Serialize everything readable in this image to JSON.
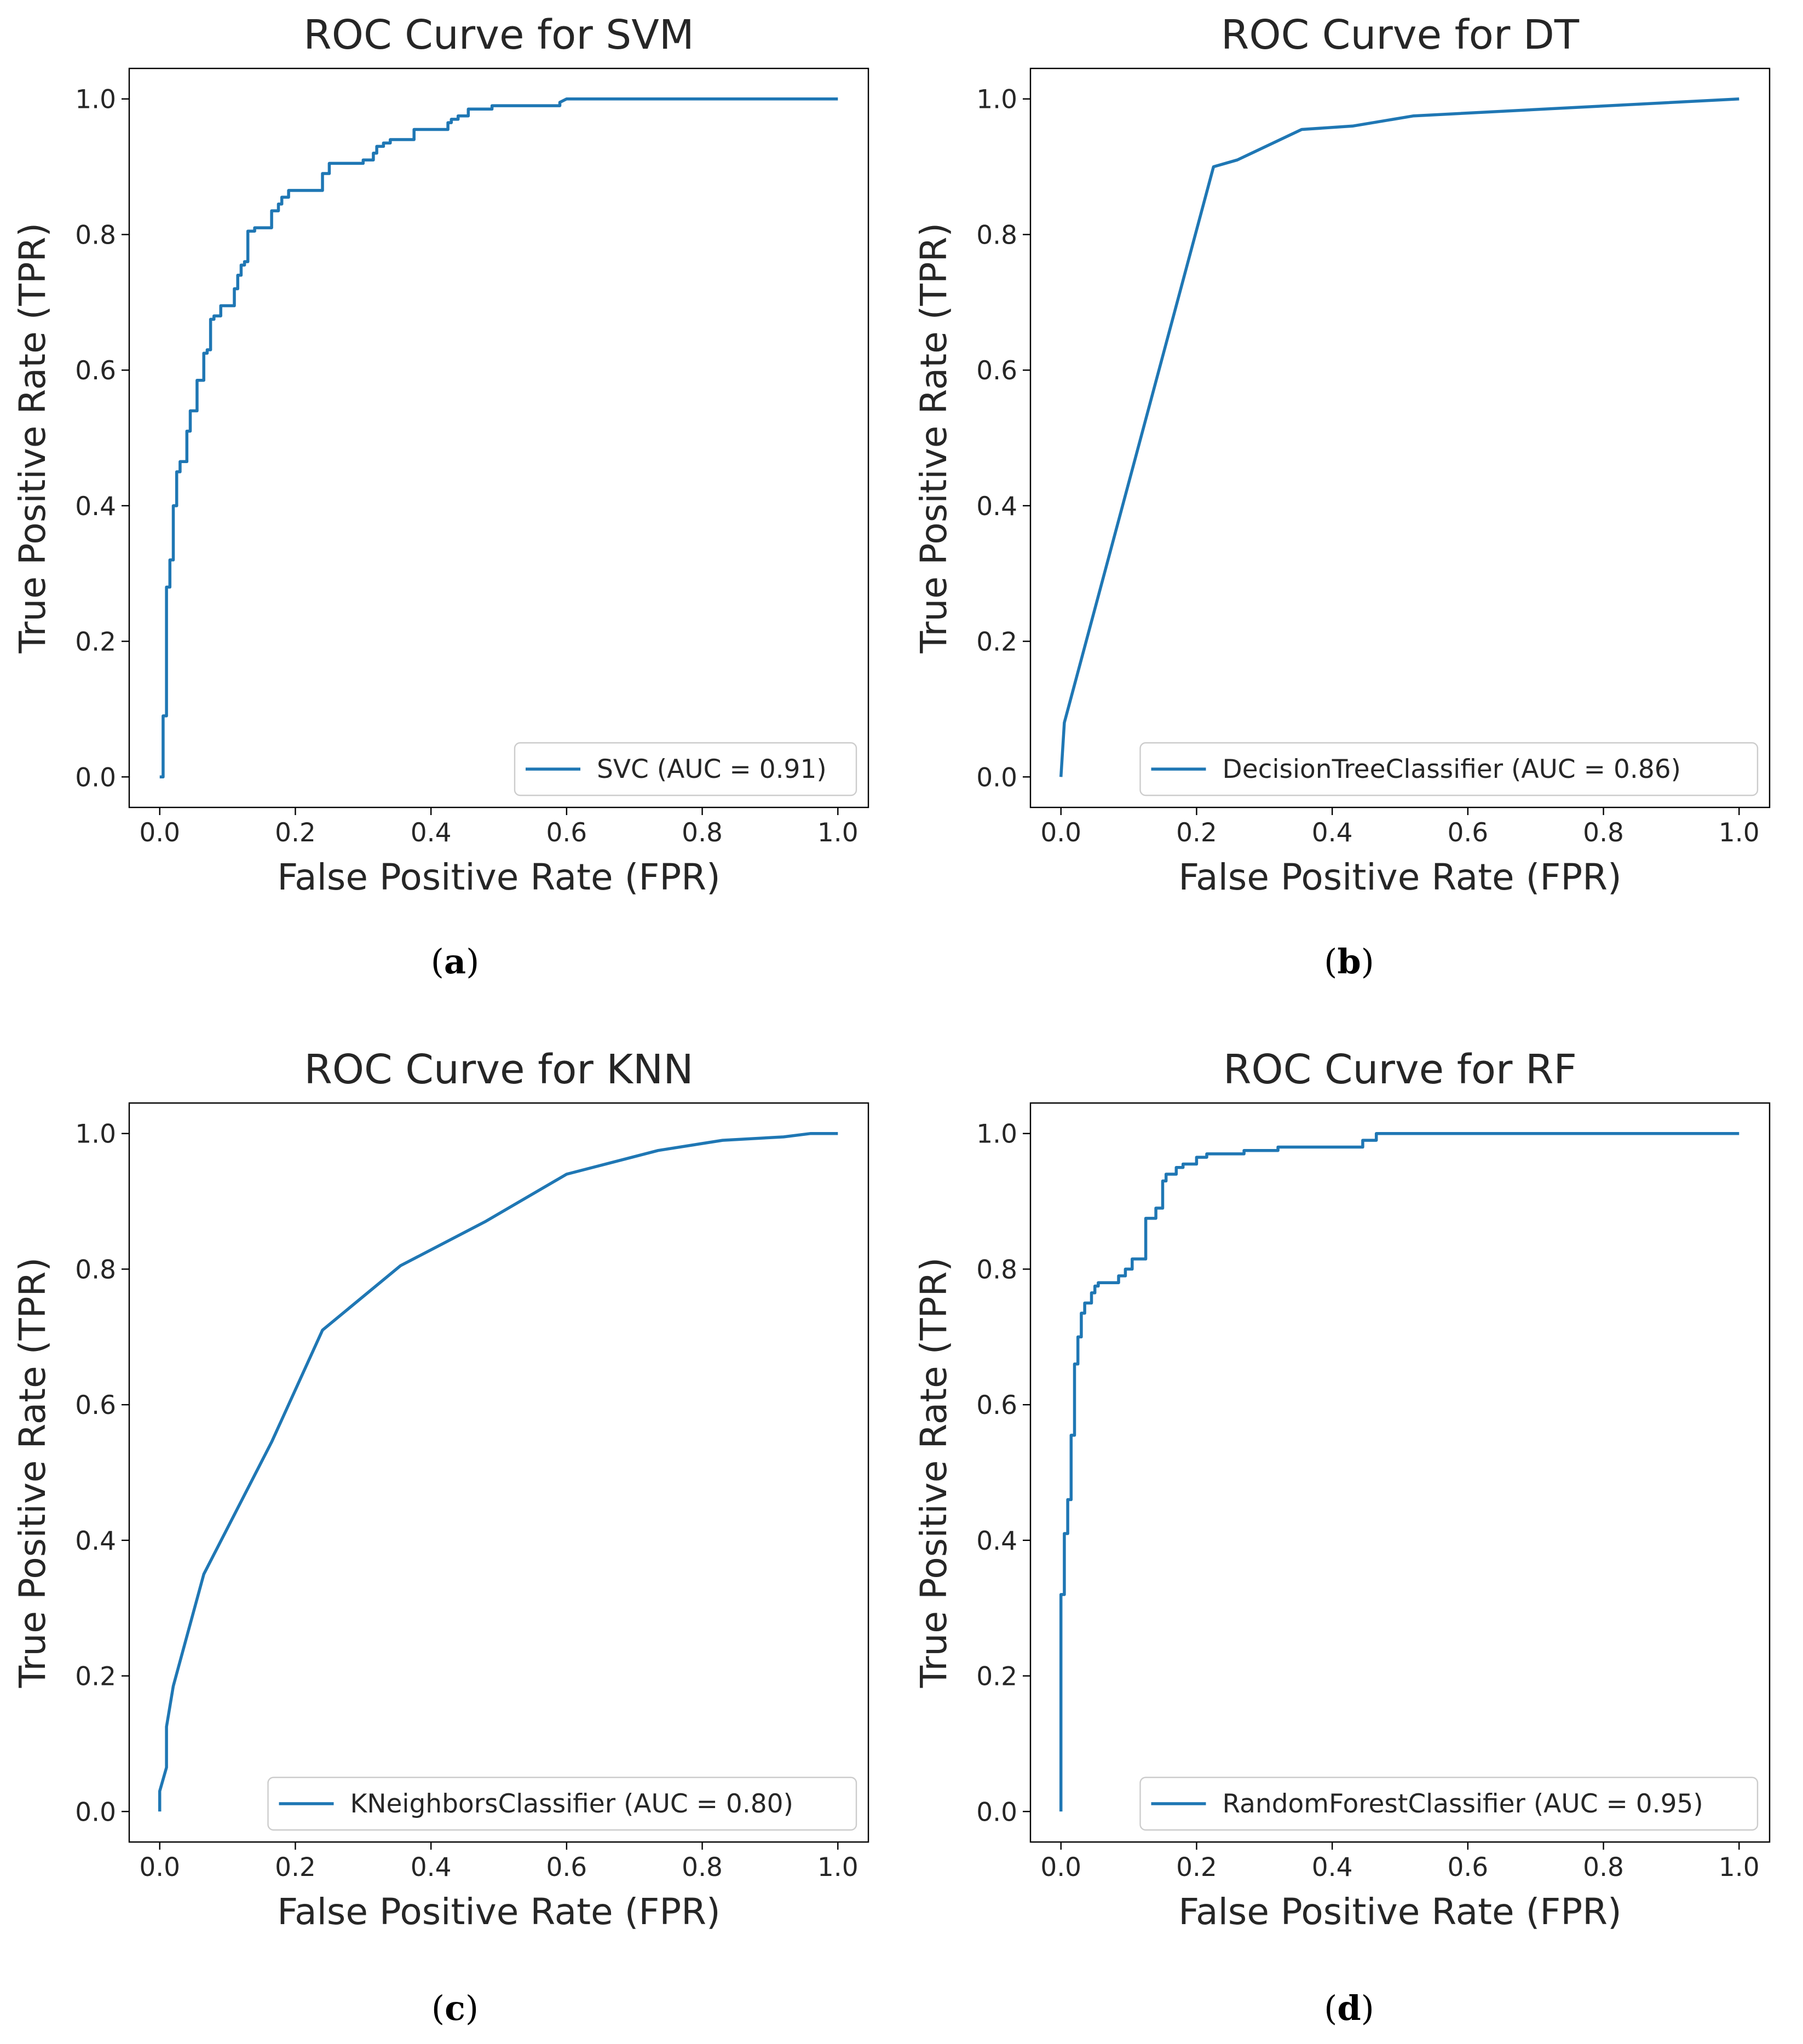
{
  "chart_data": [
    {
      "type": "line",
      "panel": "a",
      "title": "ROC Curve for SVM",
      "xlabel": "False Positive Rate (FPR)",
      "ylabel": "True Positive Rate (TPR)",
      "xlim": [
        0,
        1
      ],
      "ylim": [
        0,
        1
      ],
      "xticks": [
        "0.0",
        "0.2",
        "0.4",
        "0.6",
        "0.8",
        "1.0"
      ],
      "yticks": [
        "0.0",
        "0.2",
        "0.4",
        "0.6",
        "0.8",
        "1.0"
      ],
      "legend": "lower-right",
      "series": [
        {
          "name": "SVC (AUC = 0.91)",
          "color": "#1f77b4",
          "x": [
            0,
            0.005,
            0.005,
            0.01,
            0.01,
            0.015,
            0.015,
            0.02,
            0.02,
            0.025,
            0.025,
            0.03,
            0.03,
            0.04,
            0.04,
            0.045,
            0.045,
            0.05,
            0.05,
            0.055,
            0.055,
            0.065,
            0.065,
            0.07,
            0.07,
            0.075,
            0.075,
            0.08,
            0.08,
            0.09,
            0.09,
            0.11,
            0.11,
            0.115,
            0.115,
            0.12,
            0.12,
            0.125,
            0.125,
            0.13,
            0.13,
            0.14,
            0.14,
            0.165,
            0.165,
            0.175,
            0.175,
            0.18,
            0.18,
            0.19,
            0.19,
            0.2,
            0.2,
            0.21,
            0.21,
            0.24,
            0.24,
            0.25,
            0.25,
            0.3,
            0.3,
            0.315,
            0.315,
            0.32,
            0.32,
            0.33,
            0.33,
            0.34,
            0.34,
            0.375,
            0.375,
            0.425,
            0.425,
            0.43,
            0.43,
            0.44,
            0.44,
            0.455,
            0.455,
            0.49,
            0.49,
            0.59,
            0.59,
            0.6,
            1.0
          ],
          "y": [
            0,
            0,
            0.09,
            0.09,
            0.28,
            0.28,
            0.32,
            0.32,
            0.4,
            0.4,
            0.45,
            0.45,
            0.465,
            0.465,
            0.51,
            0.51,
            0.54,
            0.54,
            0.54,
            0.54,
            0.585,
            0.585,
            0.625,
            0.625,
            0.63,
            0.63,
            0.675,
            0.675,
            0.68,
            0.68,
            0.695,
            0.695,
            0.72,
            0.72,
            0.74,
            0.74,
            0.755,
            0.755,
            0.76,
            0.76,
            0.805,
            0.805,
            0.81,
            0.81,
            0.835,
            0.835,
            0.845,
            0.845,
            0.855,
            0.855,
            0.865,
            0.865,
            0.865,
            0.865,
            0.865,
            0.865,
            0.89,
            0.89,
            0.905,
            0.905,
            0.91,
            0.91,
            0.92,
            0.92,
            0.93,
            0.93,
            0.935,
            0.935,
            0.94,
            0.94,
            0.955,
            0.955,
            0.965,
            0.965,
            0.97,
            0.97,
            0.975,
            0.975,
            0.985,
            0.985,
            0.99,
            0.99,
            0.995,
            1.0,
            1.0
          ]
        }
      ]
    },
    {
      "type": "line",
      "panel": "b",
      "title": "ROC Curve for DT",
      "xlabel": "False Positive Rate (FPR)",
      "ylabel": "True Positive Rate (TPR)",
      "xlim": [
        0,
        1
      ],
      "ylim": [
        0,
        1
      ],
      "xticks": [
        "0.0",
        "0.2",
        "0.4",
        "0.6",
        "0.8",
        "1.0"
      ],
      "yticks": [
        "0.0",
        "0.2",
        "0.4",
        "0.6",
        "0.8",
        "1.0"
      ],
      "legend": "lower-right",
      "series": [
        {
          "name": "DecisionTreeClassifier (AUC = 0.86)",
          "color": "#1f77b4",
          "x": [
            0,
            0.005,
            0.225,
            0.26,
            0.355,
            0.43,
            0.52,
            1.0
          ],
          "y": [
            0,
            0.08,
            0.9,
            0.91,
            0.955,
            0.96,
            0.975,
            1.0
          ]
        }
      ]
    },
    {
      "type": "line",
      "panel": "c",
      "title": "ROC Curve for KNN",
      "xlabel": "False Positive Rate (FPR)",
      "ylabel": "True Positive Rate (TPR)",
      "xlim": [
        0,
        1
      ],
      "ylim": [
        0,
        1
      ],
      "xticks": [
        "0.0",
        "0.2",
        "0.4",
        "0.6",
        "0.8",
        "1.0"
      ],
      "yticks": [
        "0.0",
        "0.2",
        "0.4",
        "0.6",
        "0.8",
        "1.0"
      ],
      "legend": "lower-right",
      "series": [
        {
          "name": "KNeighborsClassifier (AUC = 0.80)",
          "color": "#1f77b4",
          "x": [
            0,
            0.0,
            0.01,
            0.01,
            0.02,
            0.065,
            0.165,
            0.24,
            0.355,
            0.48,
            0.6,
            0.735,
            0.83,
            0.92,
            0.96,
            1.0
          ],
          "y": [
            0,
            0.03,
            0.065,
            0.125,
            0.185,
            0.35,
            0.545,
            0.71,
            0.805,
            0.87,
            0.94,
            0.975,
            0.99,
            0.995,
            1.0,
            1.0
          ]
        }
      ]
    },
    {
      "type": "line",
      "panel": "d",
      "title": "ROC Curve for RF",
      "xlabel": "False Positive Rate (FPR)",
      "ylabel": "True Positive Rate (TPR)",
      "xlim": [
        0,
        1
      ],
      "ylim": [
        0,
        1
      ],
      "xticks": [
        "0.0",
        "0.2",
        "0.4",
        "0.6",
        "0.8",
        "1.0"
      ],
      "yticks": [
        "0.0",
        "0.2",
        "0.4",
        "0.6",
        "0.8",
        "1.0"
      ],
      "legend": "lower-right",
      "series": [
        {
          "name": "RandomForestClassifier (AUC = 0.95)",
          "color": "#1f77b4",
          "x": [
            0,
            0.0,
            0.005,
            0.005,
            0.01,
            0.01,
            0.015,
            0.015,
            0.02,
            0.02,
            0.025,
            0.025,
            0.03,
            0.03,
            0.035,
            0.035,
            0.045,
            0.045,
            0.05,
            0.05,
            0.055,
            0.055,
            0.06,
            0.06,
            0.065,
            0.065,
            0.085,
            0.085,
            0.095,
            0.095,
            0.105,
            0.105,
            0.125,
            0.125,
            0.14,
            0.14,
            0.15,
            0.15,
            0.155,
            0.155,
            0.17,
            0.17,
            0.18,
            0.18,
            0.2,
            0.2,
            0.215,
            0.215,
            0.225,
            0.225,
            0.27,
            0.27,
            0.32,
            0.32,
            0.445,
            0.445,
            0.465,
            0.465,
            1.0
          ],
          "y": [
            0,
            0.32,
            0.32,
            0.41,
            0.41,
            0.46,
            0.46,
            0.555,
            0.555,
            0.66,
            0.66,
            0.7,
            0.7,
            0.735,
            0.735,
            0.75,
            0.75,
            0.765,
            0.765,
            0.775,
            0.775,
            0.78,
            0.78,
            0.78,
            0.78,
            0.78,
            0.78,
            0.79,
            0.79,
            0.8,
            0.8,
            0.815,
            0.815,
            0.875,
            0.875,
            0.89,
            0.89,
            0.93,
            0.93,
            0.94,
            0.94,
            0.95,
            0.95,
            0.955,
            0.955,
            0.965,
            0.965,
            0.97,
            0.97,
            0.97,
            0.97,
            0.975,
            0.975,
            0.98,
            0.98,
            0.99,
            0.99,
            1.0,
            1.0
          ]
        }
      ]
    }
  ],
  "captions": {
    "a": "a",
    "b": "b",
    "c": "c",
    "d": "d"
  }
}
